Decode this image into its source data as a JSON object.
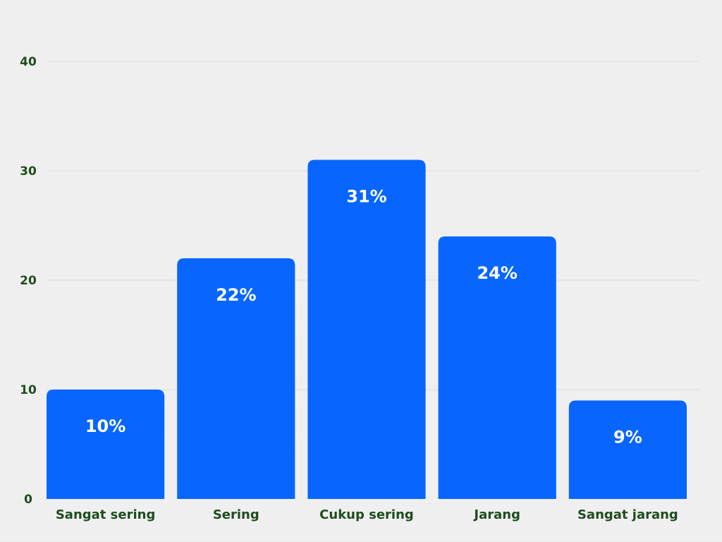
{
  "chart_data": {
    "type": "bar",
    "categories": [
      "Sangat sering",
      "Sering",
      "Cukup sering",
      "Jarang",
      "Sangat jarang"
    ],
    "values": [
      10,
      22,
      31,
      24,
      9
    ],
    "data_labels": [
      "10%",
      "22%",
      "31%",
      "24%",
      "9%"
    ],
    "y_ticks": [
      0,
      10,
      20,
      30,
      40
    ],
    "ylim": [
      0,
      40
    ],
    "grid": true,
    "bar_color": "#0866ff",
    "label_color": "#1e4d1e"
  }
}
